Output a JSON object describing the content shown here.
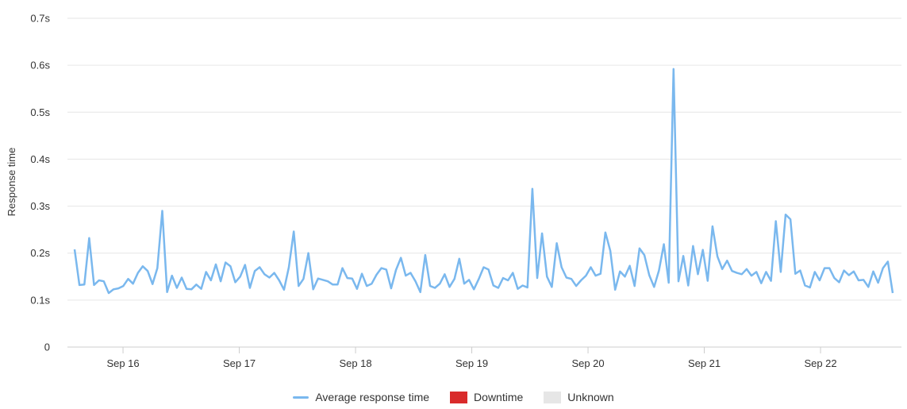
{
  "chart_data": {
    "type": "line",
    "ylabel": "Response time",
    "ylim": [
      0,
      0.7
    ],
    "y_ticks": [
      "0",
      "0.1s",
      "0.2s",
      "0.3s",
      "0.4s",
      "0.5s",
      "0.6s",
      "0.7s"
    ],
    "x_ticks": [
      "Sep 16",
      "Sep 17",
      "Sep 18",
      "Sep 19",
      "Sep 20",
      "Sep 21",
      "Sep 22"
    ],
    "grid": true,
    "legend_placement": "bottom-center",
    "colors": {
      "series": "#7ab8ee",
      "downtime": "#d92b2b",
      "unknown": "#e6e6e6",
      "grid": "#e6e6e6",
      "axis": "#cccccc"
    },
    "series": [
      {
        "name": "Average response time",
        "x_start": "Sep 15 14:00",
        "x_step_hours": 1,
        "values": [
          0.208,
          0.132,
          0.133,
          0.232,
          0.132,
          0.142,
          0.14,
          0.115,
          0.123,
          0.125,
          0.13,
          0.145,
          0.135,
          0.158,
          0.172,
          0.162,
          0.134,
          0.168,
          0.29,
          0.117,
          0.152,
          0.126,
          0.148,
          0.124,
          0.123,
          0.133,
          0.124,
          0.16,
          0.142,
          0.176,
          0.14,
          0.18,
          0.172,
          0.138,
          0.15,
          0.175,
          0.126,
          0.162,
          0.17,
          0.155,
          0.148,
          0.158,
          0.142,
          0.122,
          0.17,
          0.246,
          0.13,
          0.145,
          0.2,
          0.123,
          0.146,
          0.143,
          0.14,
          0.133,
          0.133,
          0.168,
          0.147,
          0.146,
          0.124,
          0.156,
          0.13,
          0.135,
          0.154,
          0.168,
          0.165,
          0.125,
          0.164,
          0.19,
          0.152,
          0.158,
          0.14,
          0.117,
          0.196,
          0.13,
          0.126,
          0.135,
          0.155,
          0.128,
          0.145,
          0.188,
          0.135,
          0.143,
          0.123,
          0.145,
          0.17,
          0.165,
          0.131,
          0.126,
          0.147,
          0.142,
          0.158,
          0.124,
          0.131,
          0.127,
          0.337,
          0.147,
          0.242,
          0.15,
          0.128,
          0.221,
          0.17,
          0.148,
          0.145,
          0.13,
          0.142,
          0.152,
          0.17,
          0.152,
          0.156,
          0.244,
          0.205,
          0.122,
          0.161,
          0.15,
          0.173,
          0.13,
          0.21,
          0.196,
          0.153,
          0.128,
          0.163,
          0.219,
          0.137,
          0.592,
          0.14,
          0.194,
          0.131,
          0.215,
          0.155,
          0.207,
          0.141,
          0.257,
          0.193,
          0.166,
          0.184,
          0.162,
          0.158,
          0.155,
          0.166,
          0.152,
          0.16,
          0.136,
          0.16,
          0.141,
          0.268,
          0.16,
          0.282,
          0.272,
          0.156,
          0.163,
          0.131,
          0.127,
          0.16,
          0.142,
          0.168,
          0.168,
          0.147,
          0.138,
          0.163,
          0.153,
          0.161,
          0.142,
          0.143,
          0.128,
          0.161,
          0.137,
          0.168,
          0.182,
          0.115
        ]
      }
    ]
  },
  "legend": {
    "items": [
      {
        "label": "Average response time",
        "kind": "line",
        "color": "#7ab8ee"
      },
      {
        "label": "Downtime",
        "kind": "box",
        "color": "#d92b2b"
      },
      {
        "label": "Unknown",
        "kind": "box",
        "color": "#e6e6e6"
      }
    ]
  }
}
